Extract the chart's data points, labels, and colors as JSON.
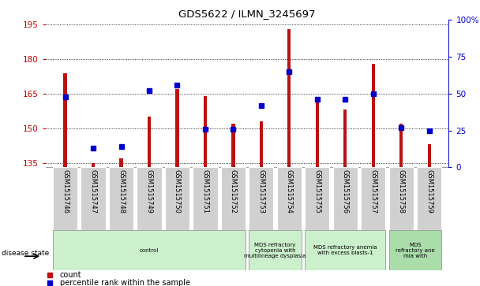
{
  "title": "GDS5622 / ILMN_3245697",
  "samples": [
    "GSM1515746",
    "GSM1515747",
    "GSM1515748",
    "GSM1515749",
    "GSM1515750",
    "GSM1515751",
    "GSM1515752",
    "GSM1515753",
    "GSM1515754",
    "GSM1515755",
    "GSM1515756",
    "GSM1515757",
    "GSM1515758",
    "GSM1515759"
  ],
  "counts": [
    174,
    135,
    137,
    155,
    167,
    164,
    152,
    153,
    193,
    163,
    158,
    178,
    152,
    143
  ],
  "percentile_ranks": [
    48,
    13,
    14,
    52,
    56,
    26,
    26,
    42,
    65,
    46,
    46,
    50,
    27,
    25
  ],
  "ylim_left": [
    133,
    197
  ],
  "ylim_right": [
    0,
    100
  ],
  "yticks_left": [
    135,
    150,
    165,
    180,
    195
  ],
  "yticks_right": [
    0,
    25,
    50,
    75,
    100
  ],
  "disease_groups": [
    {
      "label": "control",
      "start": 0,
      "end": 7
    },
    {
      "label": "MDS refractory\ncytopenia with\nmultilineage dysplasia",
      "start": 7,
      "end": 9
    },
    {
      "label": "MDS refractory anemia\nwith excess blasts-1",
      "start": 9,
      "end": 12
    },
    {
      "label": "MDS\nrefractory ane\nmia with",
      "start": 12,
      "end": 14
    }
  ],
  "bar_color": "#bb1111",
  "dot_color": "#0000cc",
  "disease_state_label": "disease state",
  "left_tick_color": "#cc0000",
  "right_tick_color": "#0000cc",
  "group_color_light": "#ccf0cc",
  "group_color_last": "#aaddaa",
  "sample_box_color": "#d0d0d0",
  "grid_color": "black",
  "bar_width": 0.12
}
